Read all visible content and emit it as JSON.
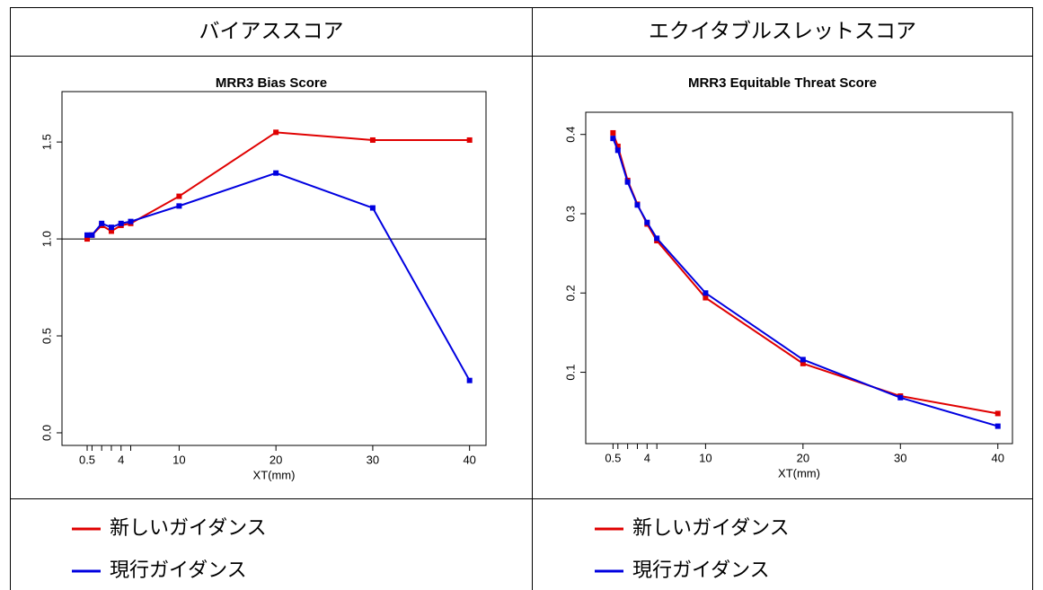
{
  "table": {
    "headers": [
      "バイアススコア",
      "エクイタブルスレットスコア"
    ]
  },
  "chart_data": [
    {
      "type": "line",
      "title": "MRR3 Bias Score",
      "xlabel": "XT(mm)",
      "x": [
        0.5,
        1,
        2,
        3,
        4,
        5,
        10,
        20,
        30,
        40
      ],
      "xlim": [
        -2.1,
        41.7
      ],
      "xticks": [
        0.5,
        4,
        10,
        20,
        30,
        40
      ],
      "xminor": [
        1,
        2,
        3,
        5
      ],
      "ylim": [
        -0.065,
        1.76
      ],
      "yticks": [
        {
          "value": 0,
          "label": "0.0"
        },
        0.5,
        {
          "value": 1,
          "label": "1.0"
        },
        1.5
      ],
      "hline": 1,
      "series": [
        {
          "name": "新しいガイダンス",
          "color": "#e00000",
          "values": [
            1.0,
            1.02,
            1.07,
            1.04,
            1.07,
            1.08,
            1.22,
            1.55,
            1.51,
            1.51
          ]
        },
        {
          "name": "現行ガイダンス",
          "color": "#0000e0",
          "values": [
            1.02,
            1.02,
            1.08,
            1.06,
            1.08,
            1.09,
            1.17,
            1.34,
            1.16,
            0.27
          ]
        }
      ]
    },
    {
      "type": "line",
      "title": "MRR3 Equitable Threat Score",
      "xlabel": "XT(mm)",
      "x": [
        0.5,
        1,
        2,
        3,
        4,
        5,
        10,
        20,
        30,
        40
      ],
      "xlim": [
        -2.3,
        41.5
      ],
      "xticks": [
        0.5,
        4,
        10,
        20,
        30,
        40
      ],
      "xminor": [
        1,
        2,
        3,
        5
      ],
      "ylim": [
        0.01,
        0.428
      ],
      "yticks": [
        0.1,
        0.2,
        0.3,
        0.4
      ],
      "series": [
        {
          "name": "新しいガイダンス",
          "color": "#e00000",
          "values": [
            0.402,
            0.385,
            0.342,
            0.312,
            0.287,
            0.266,
            0.194,
            0.111,
            0.07,
            0.048
          ]
        },
        {
          "name": "現行ガイダンス",
          "color": "#0000e0",
          "values": [
            0.395,
            0.38,
            0.34,
            0.311,
            0.289,
            0.269,
            0.2,
            0.116,
            0.068,
            0.032
          ]
        }
      ]
    }
  ]
}
